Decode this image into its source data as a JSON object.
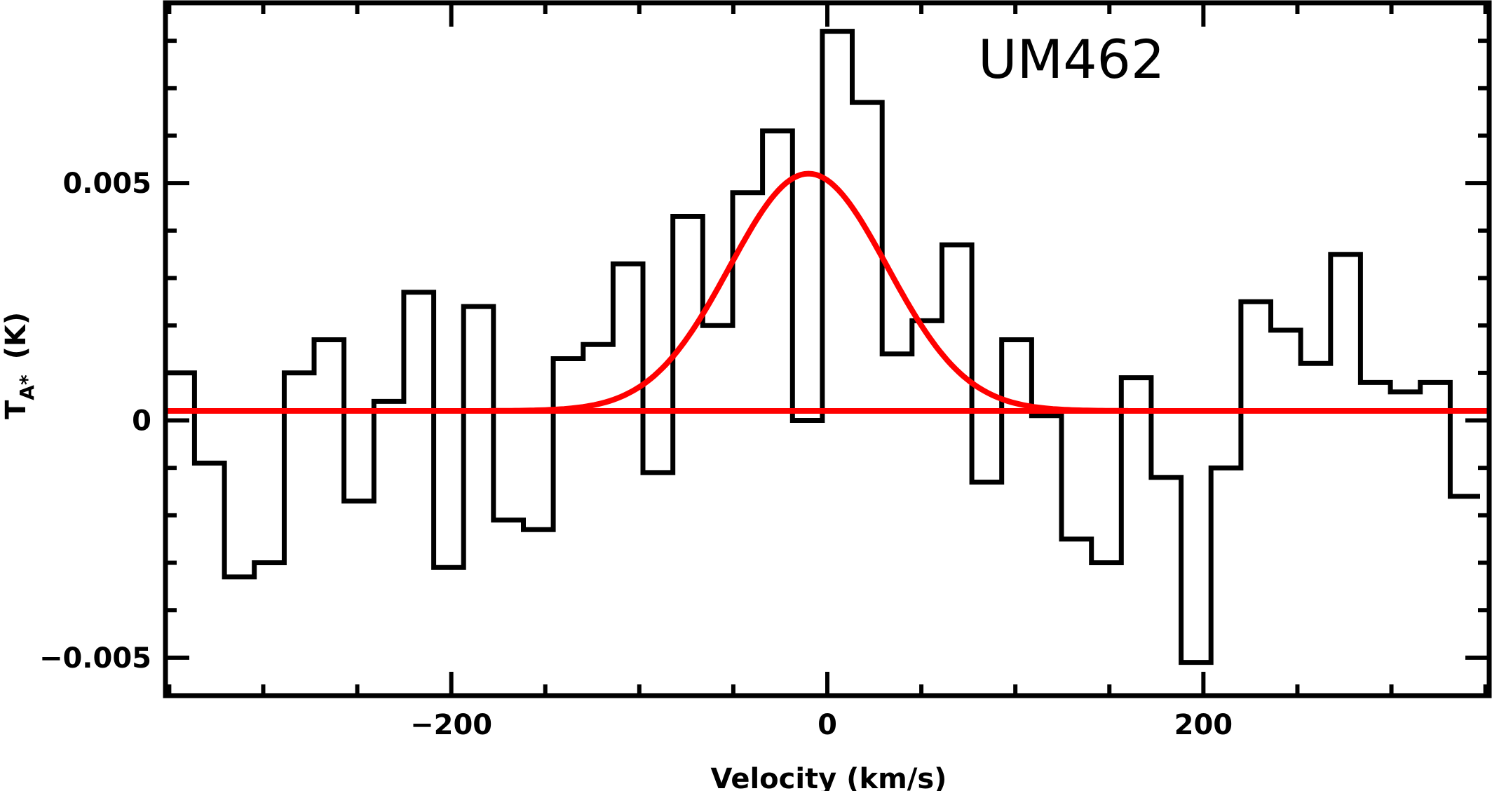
{
  "chart_data": {
    "type": "line",
    "title": "",
    "annotation": "UM462",
    "xlabel": "Velocity (km/s)",
    "ylabel_main": "T",
    "ylabel_sub": "A*",
    "ylabel_unit": "(K)",
    "xlim": [
      -352,
      352
    ],
    "ylim": [
      -0.0058,
      0.0088
    ],
    "x_ticks": [
      -200,
      0,
      200
    ],
    "x_tick_labels": [
      "−200",
      "0",
      "200"
    ],
    "x_minor_step": 50,
    "y_ticks": [
      -0.005,
      0,
      0.005
    ],
    "y_tick_labels": [
      "−0.005",
      "0",
      "0.005"
    ],
    "y_minor_step": 0.001,
    "grid": false,
    "series": [
      {
        "style": "histogram",
        "color": "#000000",
        "channel_width": 15.9,
        "x_centers": [
          -344.5,
          -328.6,
          -312.7,
          -296.8,
          -280.9,
          -265.0,
          -249.1,
          -233.2,
          -217.3,
          -201.4,
          -185.5,
          -169.6,
          -153.7,
          -137.8,
          -121.9,
          -106.0,
          -90.1,
          -74.2,
          -58.3,
          -42.4,
          -26.5,
          -10.6,
          5.3,
          21.2,
          37.1,
          53.0,
          68.9,
          84.8,
          100.7,
          116.6,
          132.5,
          148.4,
          164.3,
          180.2,
          196.1,
          212.0,
          227.9,
          243.8,
          259.7,
          275.6,
          291.5,
          307.4,
          323.3,
          339.2
        ],
        "values": [
          0.001,
          -0.0009,
          -0.0033,
          -0.003,
          0.001,
          0.0017,
          -0.0017,
          0.0004,
          0.0027,
          -0.0031,
          0.0024,
          -0.0021,
          -0.0023,
          0.0013,
          0.0016,
          0.0033,
          -0.0011,
          0.0043,
          0.002,
          0.0048,
          0.0061,
          0.0,
          0.0082,
          0.0067,
          0.0014,
          0.0021,
          0.0037,
          -0.0013,
          0.0017,
          0.0001,
          -0.0025,
          -0.003,
          0.0009,
          -0.0012,
          -0.0051,
          -0.001,
          0.0025,
          0.0019,
          0.0012,
          0.0035,
          0.0008,
          0.0006,
          0.0008,
          -0.0016
        ]
      },
      {
        "style": "gaussian-fit",
        "color": "#ff0000",
        "amplitude": 0.005,
        "center": -10,
        "sigma": 42,
        "baseline": 0.0002
      }
    ]
  }
}
